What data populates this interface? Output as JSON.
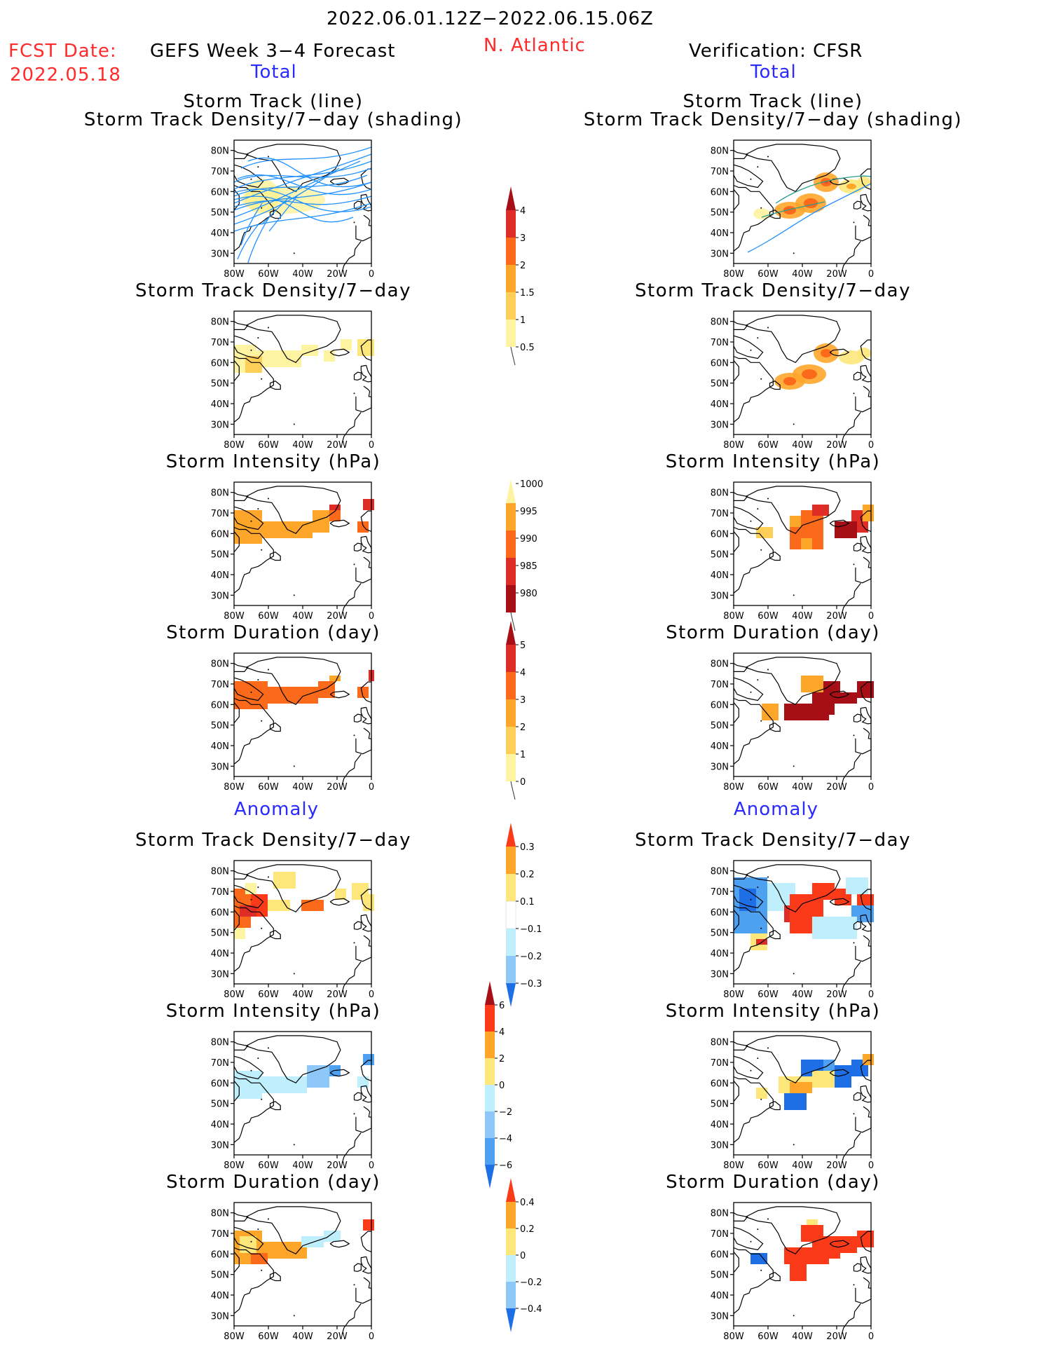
{
  "header": {
    "period": "2022.06.01.12Z−2022.06.15.06Z",
    "fcst_label": "FCST Date:",
    "fcst_date": "2022.05.18",
    "model_title": "GEFS Week 3−4 Forecast",
    "region": "N. Atlantic",
    "verification": "Verification: CFSR"
  },
  "sections": {
    "total": "Total",
    "anomaly": "Anomaly"
  },
  "titles": {
    "track_line": "Storm Track (line)",
    "track_shading": "Storm Track Density/7−day (shading)",
    "density": "Storm Track Density/7−day",
    "intensity": "Storm Intensity (hPa)",
    "duration": "Storm Duration (day)"
  },
  "axes": {
    "lat_ticks": [
      "80N",
      "70N",
      "60N",
      "50N",
      "40N",
      "30N"
    ],
    "lon_ticks": [
      "80W",
      "60W",
      "40W",
      "20W",
      "0"
    ]
  },
  "colorbars": {
    "density": {
      "labels": [
        "4",
        "3",
        "2",
        "1.5",
        "1",
        "0.5"
      ],
      "colors": [
        "#a50f15",
        "#de2d26",
        "#fb6a1a",
        "#fea62a",
        "#fdcf58",
        "#fef3a0"
      ]
    },
    "intensity": {
      "labels": [
        "1000",
        "995",
        "990",
        "985",
        "980"
      ],
      "colors": [
        "#fef3a0",
        "#fea62a",
        "#fb6a1a",
        "#de2d26",
        "#a50f15"
      ]
    },
    "duration": {
      "labels": [
        "5",
        "4",
        "3",
        "2",
        "1",
        "0"
      ],
      "colors": [
        "#a50f15",
        "#de2d26",
        "#fb6a1a",
        "#fea62a",
        "#fdcf58",
        "#fef3a0"
      ]
    },
    "anom_density": {
      "labels": [
        "0.3",
        "0.2",
        "0.1",
        "−0.1",
        "−0.2",
        "−0.3"
      ],
      "colors": [
        "#fb3a1a",
        "#fea62a",
        "#fde77a",
        "#ffffff",
        "#bfeefc",
        "#8ec8f8",
        "#1e6fe6"
      ]
    },
    "anom_intensity": {
      "labels": [
        "6",
        "4",
        "2",
        "0",
        "−2",
        "−4",
        "−6"
      ],
      "colors": [
        "#a50f15",
        "#fb3a1a",
        "#fea62a",
        "#fde77a",
        "#bfeefc",
        "#8ec8f8",
        "#4ea0f0",
        "#1e6fe6"
      ]
    },
    "anom_duration": {
      "labels": [
        "0.4",
        "0.2",
        "0",
        "−0.2",
        "−0.4"
      ],
      "colors": [
        "#fb3a1a",
        "#fea62a",
        "#fde77a",
        "#bfeefc",
        "#8ec8f8",
        "#1e6fe6"
      ]
    }
  }
}
